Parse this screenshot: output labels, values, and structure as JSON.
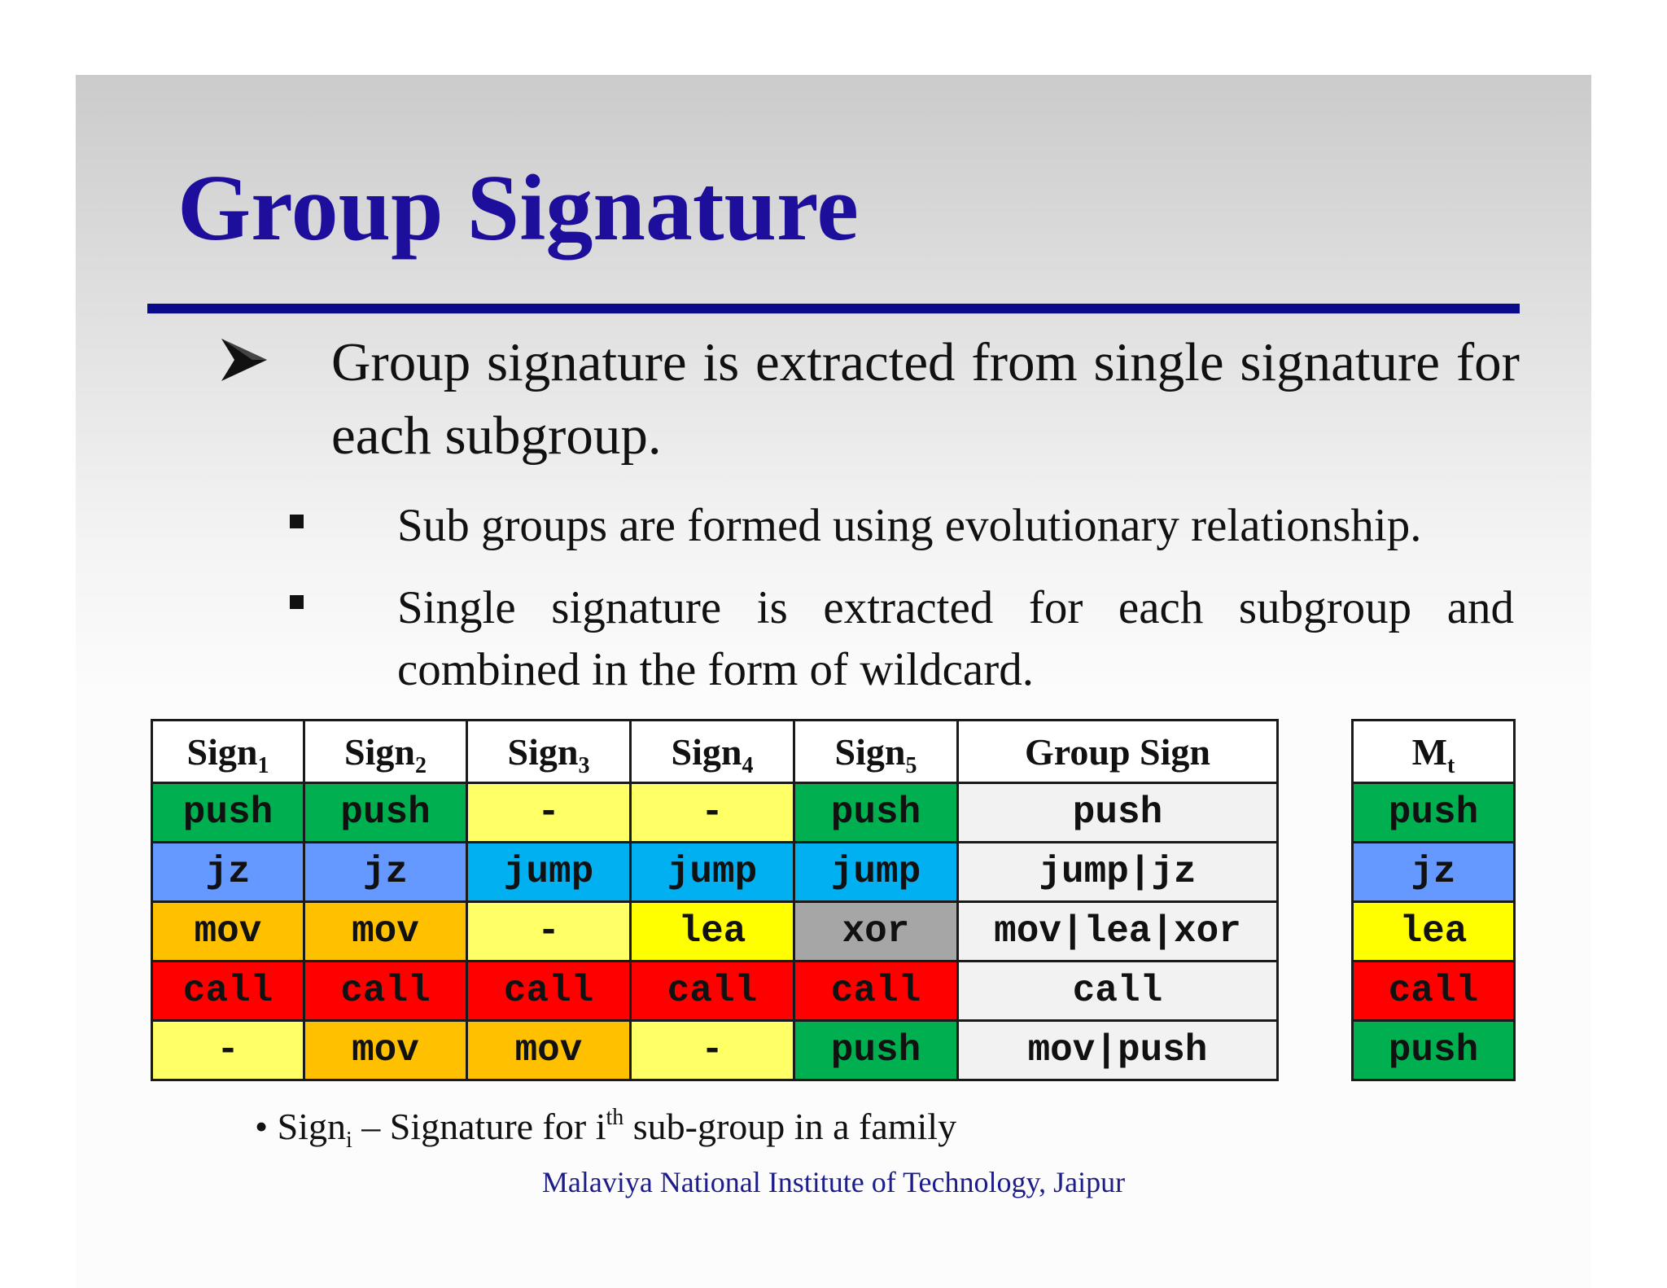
{
  "slide": {
    "title": "Group Signature",
    "bullet_main": "Group signature is extracted from single signature for each subgroup.",
    "sub_bullets": [
      "Sub groups are formed using evolutionary relationship.",
      "Single signature is extracted for each subgroup and combined in the form of wildcard."
    ],
    "footnote": {
      "bullet": "•",
      "prefix": "Sign",
      "prefix_sub": "i",
      "middle": " – Signature for i",
      "sup": "th",
      "suffix": " sub-group in a family"
    },
    "footer": "Malaviya National Institute of Technology, Jaipur"
  },
  "colors": {
    "title": "#1d0e9b",
    "rule": "#0a0a8c",
    "green": "#00b050",
    "blue": "#6699ff",
    "cyan": "#00b0f0",
    "orange": "#ffc000",
    "light_yellow": "#ffff66",
    "yellow": "#ffff00",
    "red": "#ff0000",
    "gray": "#a6a6a6",
    "light_gray": "#f2f2f2"
  },
  "table": {
    "headers": [
      {
        "base": "Sign",
        "sub": "1"
      },
      {
        "base": "Sign",
        "sub": "2"
      },
      {
        "base": "Sign",
        "sub": "3"
      },
      {
        "base": "Sign",
        "sub": "4"
      },
      {
        "base": "Sign",
        "sub": "5"
      },
      {
        "base": "Group Sign",
        "sub": ""
      }
    ],
    "rows": [
      [
        {
          "text": "push",
          "color": "#00b050"
        },
        {
          "text": "push",
          "color": "#00b050"
        },
        {
          "text": "-",
          "color": "#ffff66"
        },
        {
          "text": "-",
          "color": "#ffff66"
        },
        {
          "text": "push",
          "color": "#00b050"
        },
        {
          "text": "push",
          "color": "#f2f2f2"
        }
      ],
      [
        {
          "text": "jz",
          "color": "#6699ff"
        },
        {
          "text": "jz",
          "color": "#6699ff"
        },
        {
          "text": "jump",
          "color": "#00b0f0"
        },
        {
          "text": "jump",
          "color": "#00b0f0"
        },
        {
          "text": "jump",
          "color": "#00b0f0"
        },
        {
          "text": "jump|jz",
          "color": "#f2f2f2"
        }
      ],
      [
        {
          "text": "mov",
          "color": "#ffc000"
        },
        {
          "text": "mov",
          "color": "#ffc000"
        },
        {
          "text": "-",
          "color": "#ffff66"
        },
        {
          "text": "lea",
          "color": "#ffff00"
        },
        {
          "text": "xor",
          "color": "#a6a6a6"
        },
        {
          "text": "mov|lea|xor",
          "color": "#f2f2f2"
        }
      ],
      [
        {
          "text": "call",
          "color": "#ff0000"
        },
        {
          "text": "call",
          "color": "#ff0000"
        },
        {
          "text": "call",
          "color": "#ff0000"
        },
        {
          "text": "call",
          "color": "#ff0000"
        },
        {
          "text": "call",
          "color": "#ff0000"
        },
        {
          "text": "call",
          "color": "#f2f2f2"
        }
      ],
      [
        {
          "text": "-",
          "color": "#ffff66"
        },
        {
          "text": "mov",
          "color": "#ffc000"
        },
        {
          "text": "mov",
          "color": "#ffc000"
        },
        {
          "text": "-",
          "color": "#ffff66"
        },
        {
          "text": "push",
          "color": "#00b050"
        },
        {
          "text": "mov|push",
          "color": "#f2f2f2"
        }
      ]
    ]
  },
  "mt_table": {
    "header": {
      "base": "M",
      "sub": "t"
    },
    "rows": [
      {
        "text": "push",
        "color": "#00b050"
      },
      {
        "text": "jz",
        "color": "#6699ff"
      },
      {
        "text": "lea",
        "color": "#ffff00"
      },
      {
        "text": "call",
        "color": "#ff0000"
      },
      {
        "text": "push",
        "color": "#00b050"
      }
    ]
  }
}
